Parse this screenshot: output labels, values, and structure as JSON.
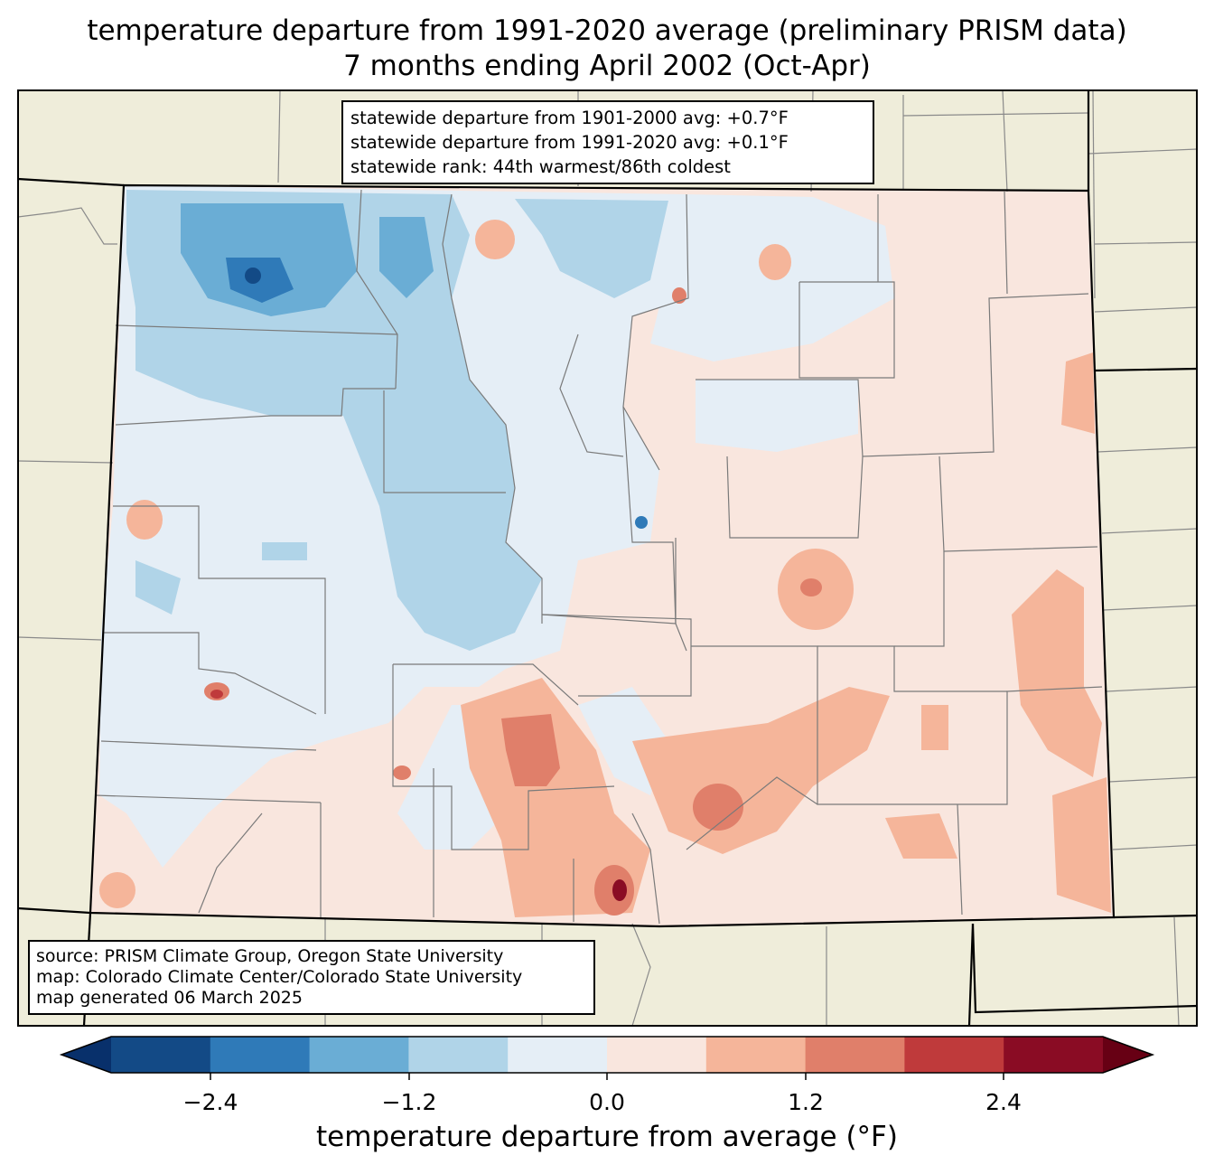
{
  "title_line1": "temperature departure from 1991-2020 average (preliminary PRISM data)",
  "title_line2": "7 months ending April 2002 (Oct-Apr)",
  "stats": {
    "line1": "statewide departure from 1901-2000 avg: +0.7°F",
    "line2": "statewide departure from 1991-2020 avg: +0.1°F",
    "line3": "statewide rank: 44th warmest/86th coldest"
  },
  "source": {
    "line1": "source: PRISM Climate Group, Oregon State University",
    "line2": "map: Colorado Climate Center/Colorado State University",
    "line3": "map generated 06 March 2025"
  },
  "colorbar": {
    "label": "temperature departure from average (°F)",
    "ticks": [
      "−2.4",
      "−1.2",
      "0.0",
      "1.2",
      "2.4"
    ],
    "colors": [
      "#08306b",
      "#134a86",
      "#2f7ab8",
      "#6aadd5",
      "#b0d4e8",
      "#e5eef6",
      "#f9e6de",
      "#f5b59a",
      "#e07f6a",
      "#bf3a3b",
      "#8a0c24",
      "#670014"
    ],
    "background_land": "#efedda"
  }
}
